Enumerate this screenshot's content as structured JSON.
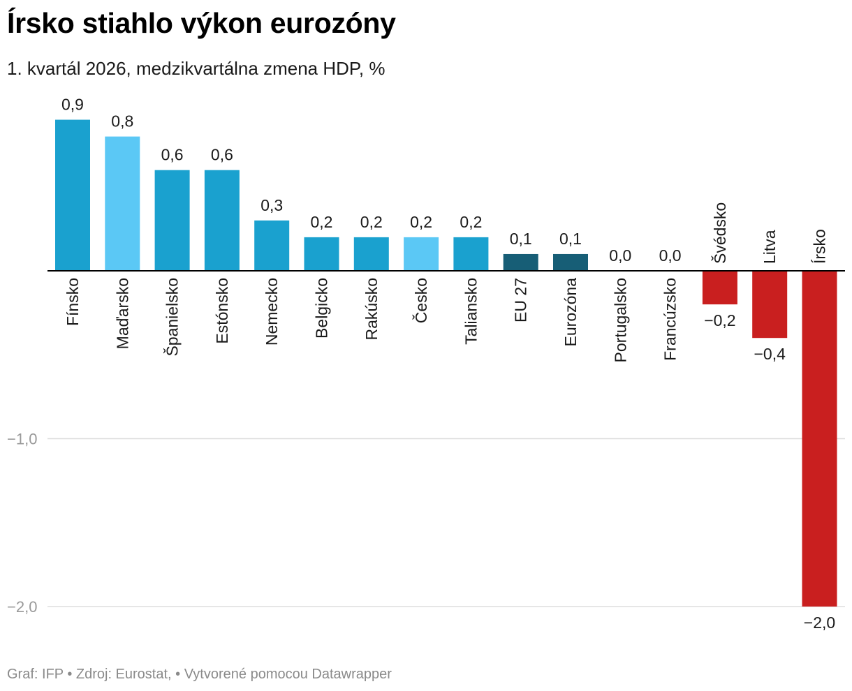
{
  "title": "Írsko stiahlo výkon eurozóny",
  "subtitle": "1. kvartál 2026, medzikvartálna zmena HDP, %",
  "footer": "Graf: IFP • Zdroj: Eurostat, • Vytvorené pomocou Datawrapper",
  "colors": {
    "standard": "#1aa1cf",
    "highlight": "#5bc8f5",
    "aggregate": "#175e76",
    "negative": "#c91f1f",
    "grid": "#dddddd",
    "axis": "#000000"
  },
  "chart_data": {
    "type": "bar",
    "title": "Írsko stiahlo výkon eurozóny",
    "subtitle": "1. kvartál 2026, medzikvartálna zmena HDP, %",
    "categories": [
      "Fínsko",
      "Maďarsko",
      "Španielsko",
      "Estónsko",
      "Nemecko",
      "Belgicko",
      "Rakúsko",
      "Česko",
      "Taliansko",
      "EU 27",
      "Eurozóna",
      "Portugalsko",
      "Francúzsko",
      "Švédsko",
      "Litva",
      "Írsko"
    ],
    "values": [
      0.9,
      0.8,
      0.6,
      0.6,
      0.3,
      0.2,
      0.2,
      0.2,
      0.2,
      0.1,
      0.1,
      0.0,
      0.0,
      -0.2,
      -0.4,
      -2.0
    ],
    "value_labels": [
      "0,9",
      "0,8",
      "0,6",
      "0,6",
      "0,3",
      "0,2",
      "0,2",
      "0,2",
      "0,2",
      "0,1",
      "0,1",
      "0,0",
      "0,0",
      "−0,2",
      "−0,4",
      "−2,0"
    ],
    "bar_styles": [
      "standard",
      "highlight",
      "standard",
      "standard",
      "standard",
      "standard",
      "standard",
      "highlight",
      "standard",
      "aggregate",
      "aggregate",
      "standard",
      "standard",
      "negative",
      "negative",
      "negative"
    ],
    "y_ticks": [
      -1.0,
      -2.0
    ],
    "y_tick_labels": [
      "−1,0",
      "−2,0"
    ],
    "ylim": [
      -2.0,
      0.9
    ],
    "xlabel": "",
    "ylabel": "",
    "grid": true
  }
}
